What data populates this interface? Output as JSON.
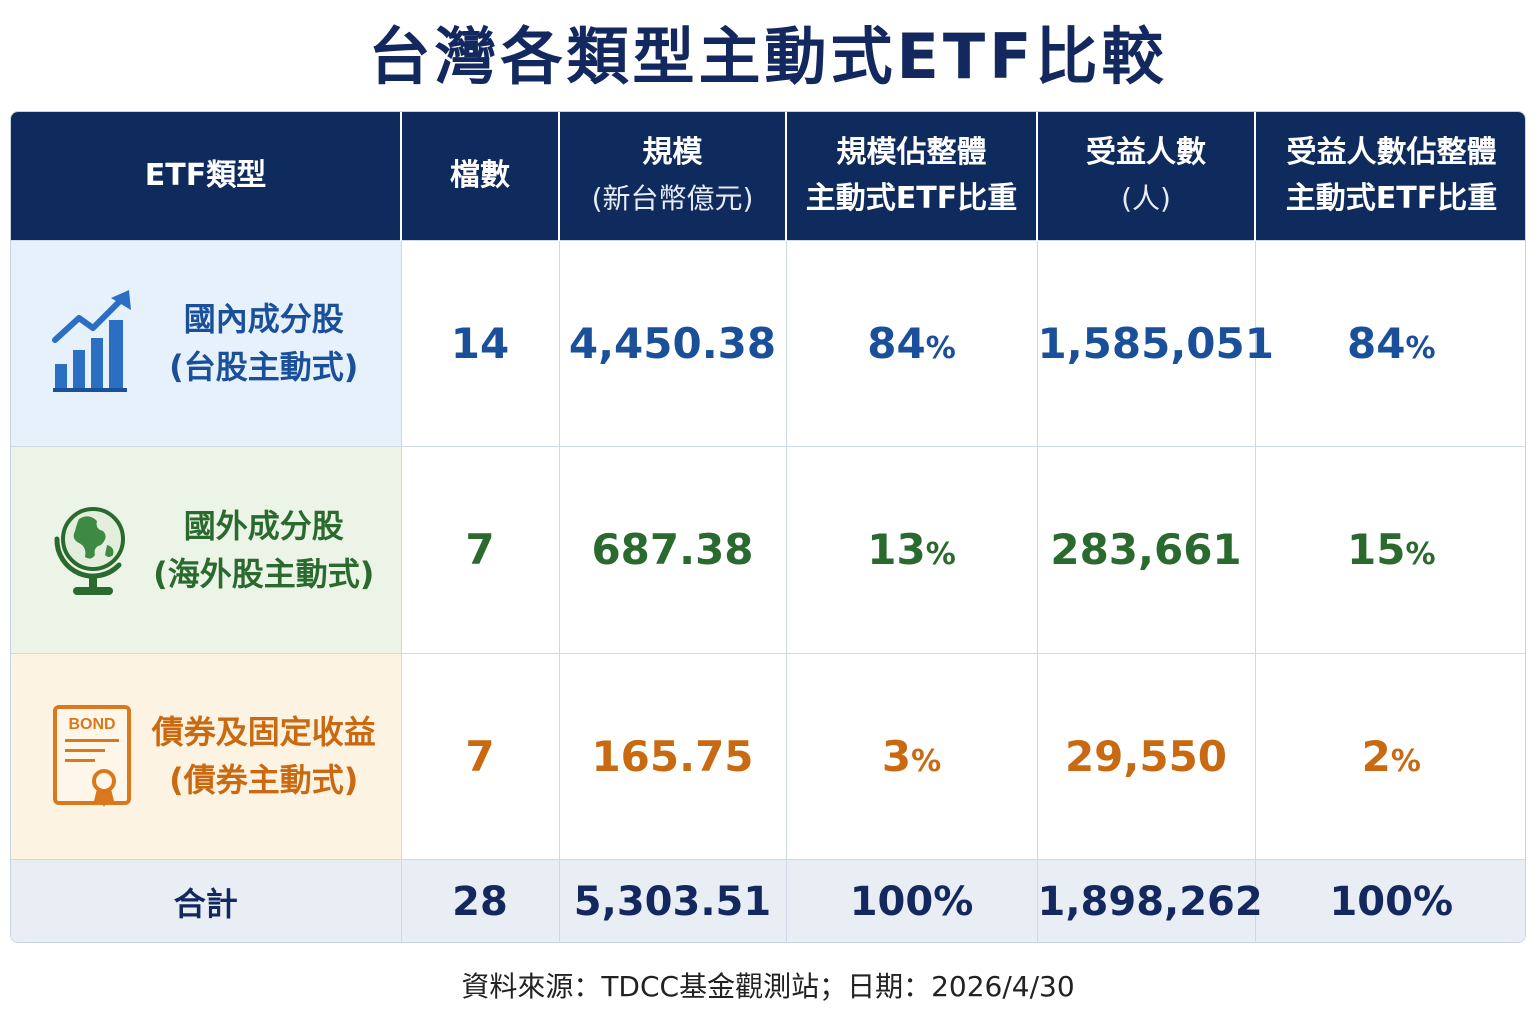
{
  "title": "台灣各類型主動式ETF比較",
  "colors": {
    "header_bg": "#0f2a5c",
    "domestic": "#1a4f99",
    "overseas": "#2b6a2f",
    "bond": "#c96a12",
    "title": "#13285e"
  },
  "headers": {
    "type": "ETF類型",
    "count": "檔數",
    "scale": "規模",
    "scale_unit": "(新台幣億元)",
    "scale_share_line1": "規模佔整體",
    "scale_share_line2": "主動式ETF比重",
    "holders": "受益人數",
    "holders_unit": "(人)",
    "holders_share_line1": "受益人數佔整體",
    "holders_share_line2": "主動式ETF比重"
  },
  "rows": [
    {
      "icon": "rising-bar-chart-icon",
      "name": "國內成分股",
      "sub": "(台股主動式)",
      "count": "14",
      "scale": "4,450.38",
      "scale_share": "84",
      "holders": "1,585,051",
      "holders_share": "84"
    },
    {
      "icon": "globe-icon",
      "name": "國外成分股",
      "sub": "(海外股主動式)",
      "count": "7",
      "scale": "687.38",
      "scale_share": "13",
      "holders": "283,661",
      "holders_share": "15"
    },
    {
      "icon": "bond-certificate-icon",
      "icon_label": "BOND",
      "name": "債券及固定收益",
      "sub": "(債券主動式)",
      "count": "7",
      "scale": "165.75",
      "scale_share": "3",
      "holders": "29,550",
      "holders_share": "2"
    }
  ],
  "percent_sign": "%",
  "total": {
    "label": "合計",
    "count": "28",
    "scale": "5,303.51",
    "scale_share": "100%",
    "holders": "1,898,262",
    "holders_share": "100%"
  },
  "footer": "資料來源：TDCC基金觀測站；日期：2026/4/30"
}
